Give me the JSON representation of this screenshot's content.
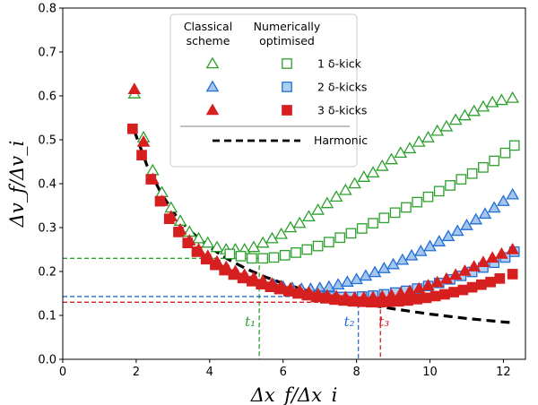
{
  "chart_data": {
    "type": "scatter",
    "xlabel": "Δx_f/Δx_i",
    "ylabel": "Δv_f/Δv_i",
    "xlim": [
      0,
      12.6
    ],
    "ylim": [
      0,
      0.8
    ],
    "xticks": [
      "0",
      "2",
      "4",
      "6",
      "8",
      "10",
      "12"
    ],
    "yticks": [
      "0.0",
      "0.1",
      "0.2",
      "0.3",
      "0.4",
      "0.5",
      "0.6",
      "0.7",
      "0.8"
    ],
    "legend": {
      "col1_line1": "Classical",
      "col1_line2": "scheme",
      "col2_line1": "Numerically",
      "col2_line2": "optimised",
      "row1": "1 δ-kick",
      "row2": "2 δ-kicks",
      "row3": "3 δ-kicks",
      "harmonic": "Harmonic",
      "placement": "top-center"
    },
    "x": [
      1.95,
      2.15,
      2.35,
      2.55,
      2.75,
      2.95,
      3.15,
      3.35,
      3.55,
      3.75,
      3.95,
      4.15,
      4.35,
      4.55,
      4.75,
      4.95,
      5.15,
      5.35,
      5.55,
      5.75,
      5.95,
      6.15,
      6.35,
      6.55,
      6.75,
      6.95,
      7.15,
      7.35,
      7.55,
      7.75,
      7.95,
      8.15,
      8.35,
      8.55,
      8.75,
      8.95,
      9.15,
      9.35,
      9.55,
      9.75,
      9.95,
      10.15,
      10.35,
      10.55,
      10.75,
      10.95,
      11.15,
      11.35,
      11.55,
      11.75,
      11.95,
      12.15
    ],
    "series": [
      {
        "name": "1 δ-kick",
        "scheme": "Classical scheme",
        "marker": "triangle",
        "color": "#2ca02c",
        "filled": false,
        "xvalues": [
          1.95,
          2.2,
          2.45,
          2.7,
          2.95,
          3.2,
          3.45,
          3.7,
          3.95,
          4.2,
          4.45,
          4.7,
          4.95,
          5.2,
          5.45,
          5.7,
          5.95,
          6.2,
          6.45,
          6.7,
          6.95,
          7.2,
          7.45,
          7.7,
          7.95,
          8.2,
          8.45,
          8.7,
          8.95,
          9.2,
          9.45,
          9.7,
          9.95,
          10.2,
          10.45,
          10.7,
          10.95,
          11.2,
          11.45,
          11.7,
          11.95,
          12.25
        ],
        "values": [
          0.605,
          0.505,
          0.43,
          0.38,
          0.345,
          0.315,
          0.29,
          0.275,
          0.265,
          0.255,
          0.25,
          0.25,
          0.25,
          0.255,
          0.265,
          0.275,
          0.285,
          0.3,
          0.31,
          0.325,
          0.34,
          0.355,
          0.37,
          0.385,
          0.4,
          0.415,
          0.425,
          0.44,
          0.455,
          0.47,
          0.48,
          0.495,
          0.505,
          0.52,
          0.53,
          0.545,
          0.555,
          0.565,
          0.575,
          0.585,
          0.59,
          0.595
        ]
      },
      {
        "name": "1 δ-kick",
        "scheme": "Numerically optimised",
        "marker": "square",
        "color": "#2ca02c",
        "filled": false,
        "xvalues": [
          4.55,
          4.85,
          5.15,
          5.45,
          5.75,
          6.05,
          6.35,
          6.65,
          6.95,
          7.25,
          7.55,
          7.85,
          8.15,
          8.45,
          8.75,
          9.05,
          9.35,
          9.65,
          9.95,
          10.25,
          10.55,
          10.85,
          11.15,
          11.45,
          11.75,
          12.05,
          12.3
        ],
        "values": [
          0.24,
          0.235,
          0.23,
          0.23,
          0.232,
          0.237,
          0.243,
          0.25,
          0.258,
          0.267,
          0.277,
          0.287,
          0.298,
          0.31,
          0.322,
          0.334,
          0.346,
          0.358,
          0.37,
          0.383,
          0.396,
          0.41,
          0.423,
          0.437,
          0.452,
          0.47,
          0.487
        ]
      },
      {
        "name": "2 δ-kicks",
        "scheme": "Classical scheme",
        "marker": "triangle",
        "color": "#1f6fd6",
        "filled": true,
        "xvalues": [
          5.75,
          6.0,
          6.25,
          6.5,
          6.75,
          7.0,
          7.25,
          7.5,
          7.75,
          8.0,
          8.25,
          8.5,
          8.75,
          9.0,
          9.25,
          9.5,
          9.75,
          10.0,
          10.25,
          10.5,
          10.75,
          11.0,
          11.25,
          11.5,
          11.75,
          12.0,
          12.25
        ],
        "values": [
          0.17,
          0.165,
          0.162,
          0.16,
          0.16,
          0.162,
          0.165,
          0.17,
          0.176,
          0.182,
          0.19,
          0.198,
          0.207,
          0.216,
          0.226,
          0.236,
          0.246,
          0.257,
          0.268,
          0.28,
          0.292,
          0.305,
          0.318,
          0.331,
          0.345,
          0.36,
          0.375
        ]
      },
      {
        "name": "2 δ-kicks",
        "scheme": "Numerically optimised",
        "marker": "square",
        "color": "#1f6fd6",
        "filled": true,
        "xvalues": [
          6.95,
          7.25,
          7.55,
          7.85,
          8.15,
          8.45,
          8.75,
          9.05,
          9.35,
          9.65,
          9.95,
          10.25,
          10.55,
          10.85,
          11.15,
          11.45,
          11.75,
          12.05,
          12.3
        ],
        "values": [
          0.145,
          0.143,
          0.142,
          0.142,
          0.143,
          0.145,
          0.148,
          0.152,
          0.156,
          0.161,
          0.167,
          0.174,
          0.182,
          0.19,
          0.199,
          0.209,
          0.22,
          0.232,
          0.245
        ]
      },
      {
        "name": "3 δ-kicks",
        "scheme": "Classical scheme",
        "marker": "triangle",
        "color": "#d62020",
        "filled": true,
        "xvalues": [
          1.95,
          2.2,
          2.45,
          2.7,
          2.95,
          3.2,
          3.45,
          3.7,
          3.95,
          4.2,
          4.45,
          4.7,
          4.95,
          5.2,
          5.45,
          5.7,
          5.95,
          6.2,
          6.45,
          6.7,
          6.95,
          7.2,
          7.45,
          7.7,
          7.95,
          8.2,
          8.45,
          8.7,
          8.95,
          9.2,
          9.45,
          9.7,
          9.95,
          10.2,
          10.45,
          10.7,
          10.95,
          11.2,
          11.45,
          11.7,
          11.95,
          12.25
        ],
        "values": [
          0.615,
          0.495,
          0.41,
          0.36,
          0.325,
          0.295,
          0.27,
          0.25,
          0.235,
          0.222,
          0.21,
          0.2,
          0.192,
          0.185,
          0.178,
          0.172,
          0.166,
          0.161,
          0.156,
          0.152,
          0.148,
          0.145,
          0.143,
          0.141,
          0.14,
          0.14,
          0.141,
          0.143,
          0.146,
          0.15,
          0.155,
          0.161,
          0.168,
          0.175,
          0.183,
          0.192,
          0.201,
          0.211,
          0.221,
          0.231,
          0.24,
          0.25
        ]
      },
      {
        "name": "3 δ-kicks",
        "scheme": "Numerically optimised",
        "marker": "square",
        "color": "#d62020",
        "filled": true,
        "xvalues": [
          1.9,
          2.15,
          2.4,
          2.65,
          2.9,
          3.15,
          3.4,
          3.65,
          3.9,
          4.15,
          4.4,
          4.65,
          4.9,
          5.15,
          5.4,
          5.65,
          5.9,
          6.15,
          6.4,
          6.65,
          6.9,
          7.15,
          7.4,
          7.65,
          7.9,
          8.15,
          8.4,
          8.65,
          8.9,
          9.15,
          9.4,
          9.65,
          9.9,
          10.15,
          10.4,
          10.65,
          10.9,
          11.15,
          11.4,
          11.65,
          11.9,
          12.25
        ],
        "values": [
          0.525,
          0.465,
          0.41,
          0.36,
          0.32,
          0.29,
          0.265,
          0.245,
          0.228,
          0.215,
          0.203,
          0.193,
          0.185,
          0.178,
          0.171,
          0.165,
          0.16,
          0.155,
          0.15,
          0.146,
          0.142,
          0.139,
          0.136,
          0.134,
          0.132,
          0.131,
          0.13,
          0.13,
          0.131,
          0.132,
          0.134,
          0.137,
          0.14,
          0.144,
          0.148,
          0.153,
          0.158,
          0.164,
          0.17,
          0.176,
          0.184,
          0.194
        ]
      },
      {
        "name": "Harmonic",
        "marker": "dashed-line",
        "color": "#000000",
        "xvalues": [
          1.95,
          2.3,
          2.7,
          3.1,
          3.5,
          4.0,
          4.5,
          5.0,
          5.5,
          6.0,
          6.5,
          7.0,
          7.5,
          8.0,
          8.5,
          9.0,
          9.5,
          10.0,
          10.5,
          11.0,
          11.5,
          12.0,
          12.3
        ],
        "values": [
          0.52,
          0.44,
          0.375,
          0.325,
          0.29,
          0.255,
          0.228,
          0.206,
          0.188,
          0.173,
          0.16,
          0.148,
          0.139,
          0.13,
          0.122,
          0.115,
          0.109,
          0.103,
          0.098,
          0.093,
          0.089,
          0.085,
          0.083
        ]
      }
    ],
    "reference_lines": [
      {
        "label": "t₁",
        "x": 5.35,
        "y": 0.23,
        "color": "#2ca02c"
      },
      {
        "label": "t₂",
        "x": 8.05,
        "y": 0.143,
        "color": "#1f6fd6"
      },
      {
        "label": "t₃",
        "x": 8.65,
        "y": 0.13,
        "color": "#d62020"
      }
    ],
    "grid": false
  }
}
